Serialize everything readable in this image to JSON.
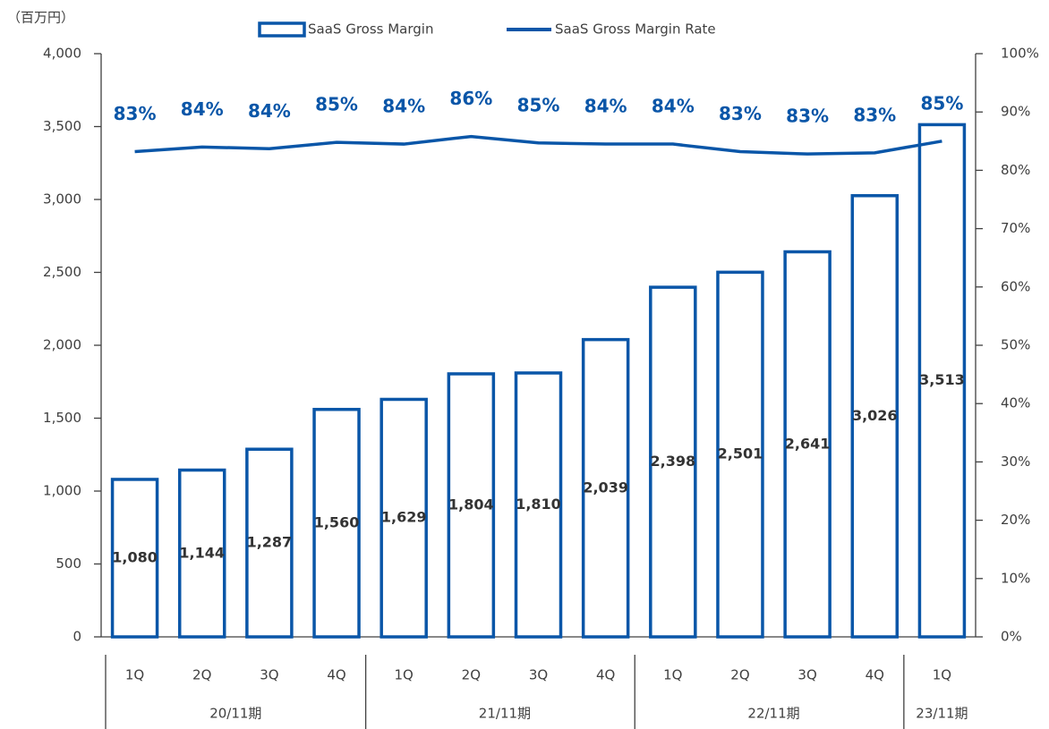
{
  "chart_data": {
    "type": "bar_line",
    "y_label": "（百万円）",
    "categories": [
      "1Q",
      "2Q",
      "3Q",
      "4Q",
      "1Q",
      "2Q",
      "3Q",
      "4Q",
      "1Q",
      "2Q",
      "3Q",
      "4Q",
      "1Q"
    ],
    "category_groups": [
      "20/11期",
      "20/11期",
      "20/11期",
      "20/11期",
      "21/11期",
      "21/11期",
      "21/11期",
      "21/11期",
      "22/11期",
      "22/11期",
      "22/11期",
      "22/11期",
      "23/11期"
    ],
    "series": [
      {
        "name": "SaaS Gross Margin",
        "type": "bar",
        "color": "#0a56a8",
        "values": [
          1080,
          1144,
          1287,
          1560,
          1629,
          1804,
          1810,
          2039,
          2398,
          2501,
          2641,
          3026,
          3513
        ],
        "value_labels": [
          "1,080",
          "1,144",
          "1,287",
          "1,560",
          "1,629",
          "1,804",
          "1,810",
          "2,039",
          "2,398",
          "2,501",
          "2,641",
          "3,026",
          "3,513"
        ]
      },
      {
        "name": "SaaS Gross Margin Rate",
        "type": "line",
        "axis": "y2",
        "color": "#0a56a8",
        "values": [
          83.2,
          84.0,
          83.7,
          84.8,
          84.5,
          85.8,
          84.7,
          84.5,
          84.5,
          83.2,
          82.8,
          83.0,
          85.0
        ],
        "value_labels": [
          "83%",
          "84%",
          "84%",
          "85%",
          "84%",
          "86%",
          "85%",
          "84%",
          "84%",
          "83%",
          "83%",
          "83%",
          "85%"
        ]
      }
    ],
    "ylim": [
      0,
      4000
    ],
    "yticks": [
      0,
      500,
      {
        "value": 1000,
        "label": "1,000"
      },
      {
        "value": 1500,
        "label": "1,500"
      },
      {
        "value": 2000,
        "label": "2,000"
      },
      {
        "value": 2500,
        "label": "2,500"
      },
      {
        "value": 3000,
        "label": "3,000"
      },
      {
        "value": 3500,
        "label": "3,500"
      },
      {
        "value": 4000,
        "label": "4,000"
      }
    ],
    "y2lim": [
      0,
      100
    ],
    "y2ticks": [
      {
        "value": 0,
        "label": "0%"
      },
      {
        "value": 10,
        "label": "10%"
      },
      {
        "value": 20,
        "label": "20%"
      },
      {
        "value": 30,
        "label": "30%"
      },
      {
        "value": 40,
        "label": "40%"
      },
      {
        "value": 50,
        "label": "50%"
      },
      {
        "value": 60,
        "label": "60%"
      },
      {
        "value": 70,
        "label": "70%"
      },
      {
        "value": 80,
        "label": "80%"
      },
      {
        "value": 90,
        "label": "90%"
      },
      {
        "value": 100,
        "label": "100%"
      }
    ],
    "legend": "top"
  }
}
